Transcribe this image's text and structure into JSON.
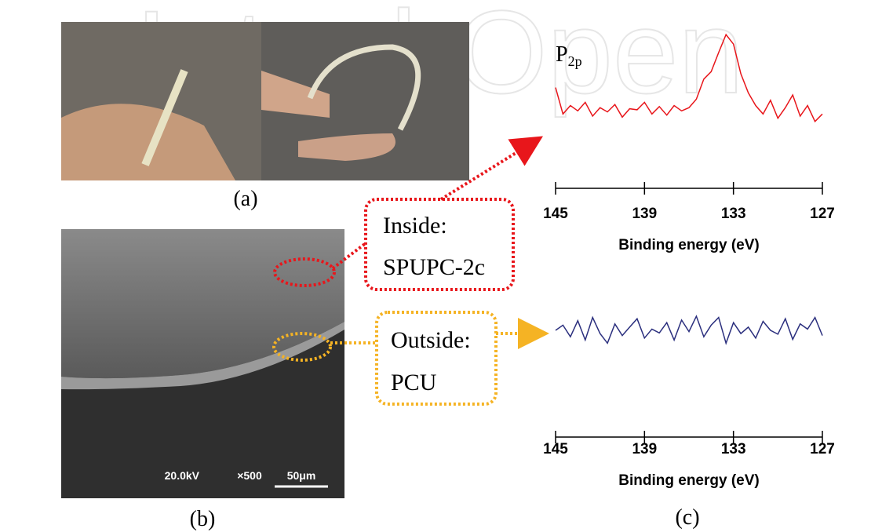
{
  "watermark": "IntechOpen",
  "panels": {
    "a": "(a)",
    "b": "(b)",
    "c": "(c)"
  },
  "callouts": {
    "inside": {
      "line1": "Inside:",
      "line2": "SPUPC-2c"
    },
    "outside": {
      "line1": "Outside:",
      "line2": "PCU"
    }
  },
  "sem_info": {
    "voltage": "20.0kV",
    "magnification": "×500",
    "scale_bar": "50μm"
  },
  "chart_data": [
    {
      "type": "line",
      "title": "P",
      "title_subscript": "2p",
      "xlabel": "Binding energy (eV)",
      "xlim": [
        145,
        127
      ],
      "xticks": [
        145,
        139,
        133,
        127
      ],
      "ylim": [
        0,
        100
      ],
      "x": [
        145,
        144.5,
        144,
        143.5,
        143,
        142.5,
        142,
        141.5,
        141,
        140.5,
        140,
        139.5,
        139,
        138.5,
        138,
        137.5,
        137,
        136.5,
        136,
        135.5,
        135,
        134.5,
        134,
        133.5,
        133,
        132.5,
        132,
        131.5,
        131,
        130.5,
        130,
        129.5,
        129,
        128.5,
        128,
        127.5,
        127
      ],
      "series": [
        {
          "color": "#e8161b",
          "values": [
            47,
            22,
            30,
            25,
            33,
            20,
            28,
            24,
            31,
            19,
            27,
            26,
            33,
            22,
            29,
            21,
            30,
            25,
            28,
            36,
            55,
            62,
            80,
            97,
            88,
            60,
            42,
            30,
            22,
            35,
            18,
            28,
            40,
            20,
            30,
            15,
            22
          ]
        }
      ]
    },
    {
      "type": "line",
      "xlabel": "Binding energy (eV)",
      "xlim": [
        145,
        127
      ],
      "xticks": [
        145,
        139,
        133,
        127
      ],
      "ylim": [
        0,
        100
      ],
      "x": [
        145,
        144.5,
        144,
        143.5,
        143,
        142.5,
        142,
        141.5,
        141,
        140.5,
        140,
        139.5,
        139,
        138.5,
        138,
        137.5,
        137,
        136.5,
        136,
        135.5,
        135,
        134.5,
        134,
        133.5,
        133,
        132.5,
        132,
        131.5,
        131,
        130.5,
        130,
        129.5,
        129,
        128.5,
        128,
        127.5,
        127
      ],
      "series": [
        {
          "color": "#2b2f7e",
          "values": [
            50,
            58,
            40,
            65,
            35,
            70,
            45,
            30,
            60,
            42,
            55,
            68,
            38,
            52,
            46,
            62,
            35,
            66,
            48,
            72,
            40,
            58,
            70,
            30,
            62,
            45,
            55,
            38,
            64,
            50,
            44,
            68,
            36,
            60,
            52,
            70,
            42
          ]
        }
      ]
    }
  ]
}
